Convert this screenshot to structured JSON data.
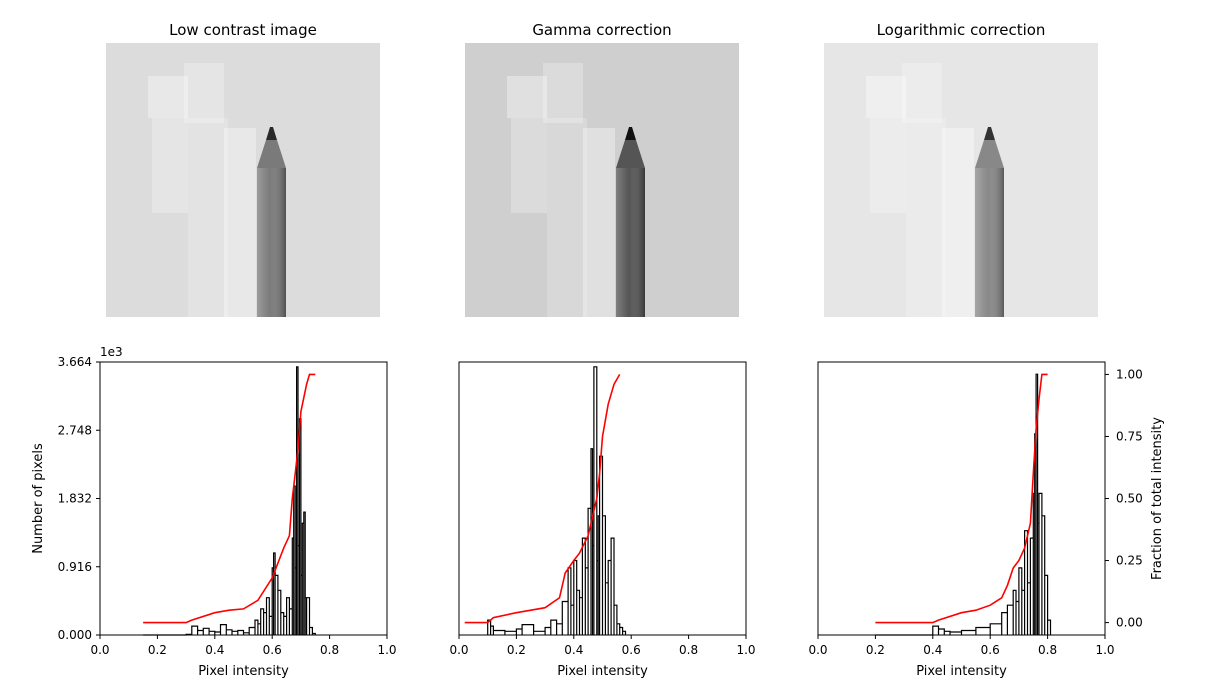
{
  "chart_data": [
    {
      "panel": "image",
      "type": "image",
      "title": "Low contrast image",
      "colors": {
        "background": "#dcdcdc",
        "pencil": "#7a7a7a",
        "tip": "#2a2a2a"
      }
    },
    {
      "panel": "image",
      "type": "image",
      "title": "Gamma correction",
      "colors": {
        "background": "#cfcfcf",
        "pencil": "#555555",
        "tip": "#111111"
      }
    },
    {
      "panel": "image",
      "type": "image",
      "title": "Logarithmic correction",
      "colors": {
        "background": "#e6e6e6",
        "pencil": "#888888",
        "tip": "#333333"
      }
    },
    {
      "panel": "histogram",
      "type": "line",
      "xlabel": "Pixel intensity",
      "ylabel": "Number of pixels",
      "xlim": [
        0.0,
        1.0
      ],
      "ylim": [
        0,
        3.664
      ],
      "y_offset_label": "1e3",
      "xticks": [
        "0.0",
        "0.2",
        "0.4",
        "0.6",
        "0.8",
        "1.0"
      ],
      "yticks": [
        "0.000",
        "0.916",
        "1.832",
        "2.748",
        "3.664"
      ],
      "right_axis": null,
      "series": [
        {
          "kind": "histogram",
          "color": "#000000",
          "x": [
            0.15,
            0.3,
            0.32,
            0.34,
            0.36,
            0.38,
            0.4,
            0.42,
            0.44,
            0.46,
            0.48,
            0.5,
            0.52,
            0.54,
            0.55,
            0.56,
            0.57,
            0.58,
            0.59,
            0.6,
            0.605,
            0.61,
            0.62,
            0.63,
            0.64,
            0.65,
            0.66,
            0.67,
            0.675,
            0.68,
            0.685,
            0.69,
            0.695,
            0.7,
            0.705,
            0.71,
            0.715,
            0.72,
            0.73,
            0.74,
            0.75
          ],
          "values": [
            0.0,
            0.01,
            0.12,
            0.06,
            0.09,
            0.05,
            0.04,
            0.14,
            0.07,
            0.05,
            0.06,
            0.03,
            0.1,
            0.2,
            0.15,
            0.35,
            0.3,
            0.5,
            0.25,
            0.9,
            1.1,
            0.8,
            0.6,
            0.3,
            0.25,
            0.5,
            0.35,
            1.3,
            2.0,
            0.9,
            3.6,
            1.2,
            2.9,
            0.8,
            1.5,
            1.65,
            0.5,
            0.5,
            0.1,
            0.02,
            0.0
          ]
        },
        {
          "kind": "cumulative",
          "color": "#ff0000",
          "x": [
            0.15,
            0.3,
            0.32,
            0.4,
            0.45,
            0.5,
            0.55,
            0.6,
            0.64,
            0.66,
            0.67,
            0.68,
            0.69,
            0.7,
            0.72,
            0.73,
            0.75
          ],
          "values": [
            0.0,
            0.0,
            0.01,
            0.04,
            0.05,
            0.055,
            0.09,
            0.18,
            0.3,
            0.35,
            0.5,
            0.6,
            0.7,
            0.85,
            0.96,
            1.0,
            1.0
          ]
        }
      ]
    },
    {
      "panel": "histogram",
      "type": "line",
      "xlabel": "Pixel intensity",
      "ylabel": "",
      "xlim": [
        0.0,
        1.0
      ],
      "ylim": [
        0,
        3.664
      ],
      "xticks": [
        "0.0",
        "0.2",
        "0.4",
        "0.6",
        "0.8",
        "1.0"
      ],
      "yticks": [],
      "right_axis": null,
      "series": [
        {
          "kind": "histogram",
          "color": "#000000",
          "x": [
            0.1,
            0.1,
            0.11,
            0.12,
            0.16,
            0.2,
            0.22,
            0.26,
            0.3,
            0.32,
            0.34,
            0.36,
            0.38,
            0.39,
            0.4,
            0.41,
            0.42,
            0.43,
            0.44,
            0.45,
            0.46,
            0.465,
            0.47,
            0.48,
            0.485,
            0.49,
            0.5,
            0.51,
            0.52,
            0.53,
            0.54,
            0.55,
            0.56,
            0.57,
            0.58
          ],
          "values": [
            0.0,
            0.2,
            0.12,
            0.06,
            0.05,
            0.08,
            0.14,
            0.05,
            0.1,
            0.2,
            0.15,
            0.45,
            0.9,
            0.4,
            1.0,
            0.6,
            0.5,
            1.3,
            0.9,
            1.7,
            2.5,
            1.2,
            3.6,
            1.0,
            1.6,
            2.4,
            1.6,
            0.7,
            1.0,
            1.3,
            0.4,
            0.15,
            0.1,
            0.05,
            0.0
          ]
        },
        {
          "kind": "cumulative",
          "color": "#ff0000",
          "x": [
            0.02,
            0.1,
            0.12,
            0.2,
            0.3,
            0.35,
            0.37,
            0.4,
            0.42,
            0.45,
            0.46,
            0.48,
            0.49,
            0.5,
            0.52,
            0.54,
            0.56
          ],
          "values": [
            0.0,
            0.0,
            0.02,
            0.04,
            0.06,
            0.1,
            0.2,
            0.25,
            0.28,
            0.35,
            0.4,
            0.5,
            0.6,
            0.75,
            0.88,
            0.96,
            1.0
          ]
        }
      ]
    },
    {
      "panel": "histogram",
      "type": "line",
      "xlabel": "Pixel intensity",
      "ylabel": "",
      "xlim": [
        0.0,
        1.0
      ],
      "ylim": [
        0,
        3.664
      ],
      "xticks": [
        "0.0",
        "0.2",
        "0.4",
        "0.6",
        "0.8",
        "1.0"
      ],
      "yticks": [],
      "right_axis": {
        "ylabel": "Fraction of total intensity",
        "ylim": [
          -0.05,
          1.05
        ],
        "yticks": [
          "0.00",
          "0.25",
          "0.50",
          "0.75",
          "1.00"
        ]
      },
      "series": [
        {
          "kind": "histogram",
          "color": "#000000",
          "x": [
            0.2,
            0.38,
            0.4,
            0.42,
            0.44,
            0.46,
            0.5,
            0.55,
            0.6,
            0.64,
            0.66,
            0.68,
            0.69,
            0.7,
            0.71,
            0.72,
            0.73,
            0.74,
            0.75,
            0.755,
            0.76,
            0.765,
            0.77,
            0.78,
            0.79,
            0.8,
            0.81
          ],
          "values": [
            0.0,
            0.0,
            0.12,
            0.08,
            0.05,
            0.04,
            0.06,
            0.1,
            0.15,
            0.3,
            0.4,
            0.6,
            0.45,
            0.9,
            0.6,
            1.4,
            0.7,
            1.3,
            1.9,
            2.7,
            3.5,
            1.5,
            1.9,
            1.6,
            0.8,
            0.2,
            0.0
          ]
        },
        {
          "kind": "cumulative",
          "color": "#ff0000",
          "x": [
            0.2,
            0.4,
            0.42,
            0.5,
            0.55,
            0.6,
            0.64,
            0.66,
            0.68,
            0.7,
            0.72,
            0.74,
            0.75,
            0.76,
            0.77,
            0.78,
            0.8
          ],
          "values": [
            0.0,
            0.0,
            0.01,
            0.04,
            0.05,
            0.07,
            0.1,
            0.15,
            0.22,
            0.25,
            0.3,
            0.4,
            0.6,
            0.78,
            0.9,
            1.0,
            1.0
          ]
        }
      ]
    }
  ]
}
